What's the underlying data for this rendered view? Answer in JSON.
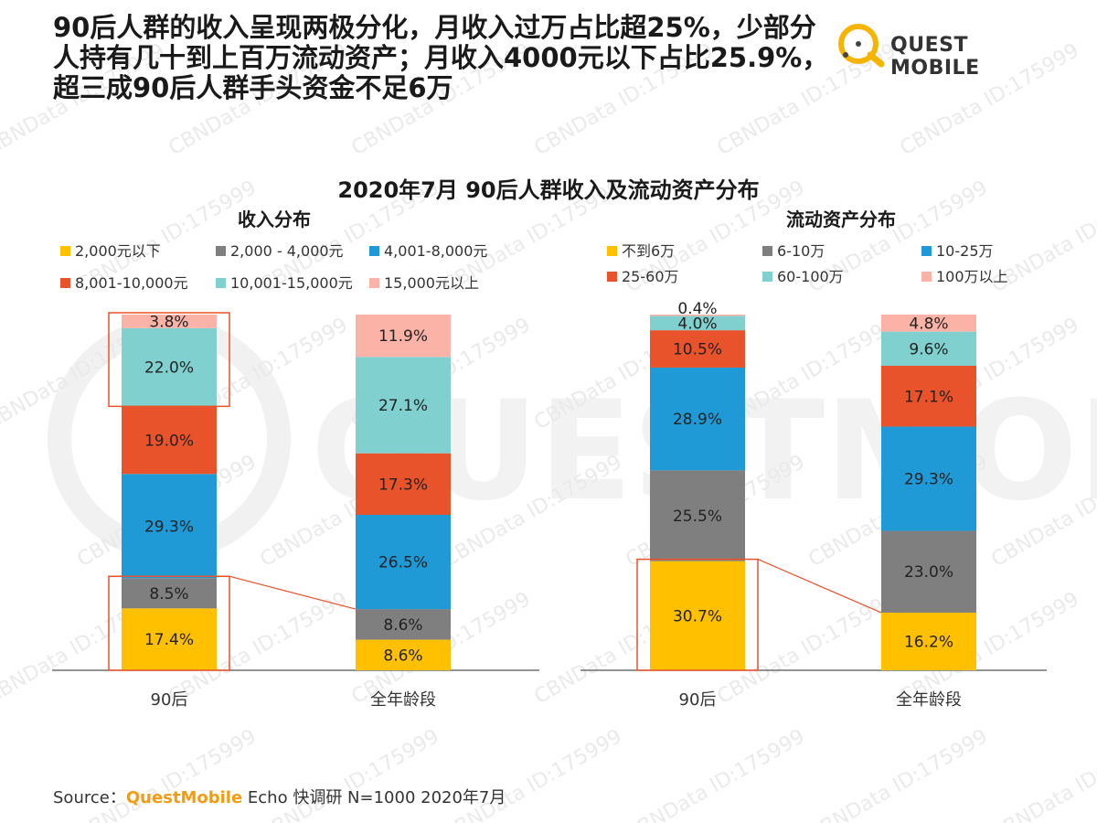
{
  "headline": {
    "line1": "90后人群的收入呈现两极分化，月收入过万占比超25%，少部分",
    "line2": "人持有几十到上百万流动资产；月收入4000元以下占比25.9%，",
    "line3": "超三成90后人群手头资金不足6万"
  },
  "logo": {
    "text": "QUEST MOBILE"
  },
  "watermark": {
    "text": "CBNData ID:175999",
    "logo_text": "QUESTMOBILE"
  },
  "source": {
    "prefix": "Source：",
    "brand": "QuestMobile",
    "rest": " Echo 快调研 N=1000 2020年7月"
  },
  "chart_data": {
    "title": "2020年7月 90后人群收入及流动资产分布",
    "panels": [
      {
        "type": "bar",
        "stacked": true,
        "title": "收入分布",
        "categories": [
          "90后",
          "全年龄段"
        ],
        "ylim": [
          0,
          100
        ],
        "series": [
          {
            "name": "2,000元以下",
            "color": "#ffc000",
            "values": [
              17.4,
              8.6
            ]
          },
          {
            "name": "2,000 - 4,000元",
            "color": "#7f7f7f",
            "values": [
              8.5,
              8.6
            ]
          },
          {
            "name": "4,001-8,000元",
            "color": "#1f9ad6",
            "values": [
              29.3,
              26.5
            ]
          },
          {
            "name": "8,001-10,000元",
            "color": "#e8532b",
            "values": [
              19.0,
              17.3
            ]
          },
          {
            "name": "10,001-15,000元",
            "color": "#7fd0cf",
            "values": [
              22.0,
              27.1
            ]
          },
          {
            "name": "15,000元以上",
            "color": "#fbb3a8",
            "values": [
              3.8,
              11.9
            ]
          }
        ],
        "labels": [
          [
            "17.4%",
            "8.5%",
            "29.3%",
            "19.0%",
            "22.0%",
            "3.8%"
          ],
          [
            "8.6%",
            "8.6%",
            "26.5%",
            "17.3%",
            "27.1%",
            "11.9%"
          ]
        ],
        "highlight_boxes": [
          {
            "category": 0,
            "from_series": 4,
            "to_series": 5
          },
          {
            "category": 0,
            "from_series": 0,
            "to_series": 1
          }
        ]
      },
      {
        "type": "bar",
        "stacked": true,
        "title": "流动资产分布",
        "categories": [
          "90后",
          "全年龄段"
        ],
        "ylim": [
          0,
          100
        ],
        "series": [
          {
            "name": "不到6万",
            "color": "#ffc000",
            "values": [
              30.7,
              16.2
            ]
          },
          {
            "name": "6-10万",
            "color": "#7f7f7f",
            "values": [
              25.5,
              23.0
            ]
          },
          {
            "name": "10-25万",
            "color": "#1f9ad6",
            "values": [
              28.9,
              29.3
            ]
          },
          {
            "name": "25-60万",
            "color": "#e8532b",
            "values": [
              10.5,
              17.1
            ]
          },
          {
            "name": "60-100万",
            "color": "#7fd0cf",
            "values": [
              4.0,
              9.6
            ]
          },
          {
            "name": "100万以上",
            "color": "#fbb3a8",
            "values": [
              0.4,
              4.8
            ]
          }
        ],
        "labels": [
          [
            "30.7%",
            "25.5%",
            "28.9%",
            "10.5%",
            "4.0%",
            "0.4%"
          ],
          [
            "16.2%",
            "23.0%",
            "29.3%",
            "17.1%",
            "9.6%",
            "4.8%"
          ]
        ],
        "highlight_boxes": [
          {
            "category": 0,
            "from_series": 0,
            "to_series": 0
          }
        ]
      }
    ]
  }
}
